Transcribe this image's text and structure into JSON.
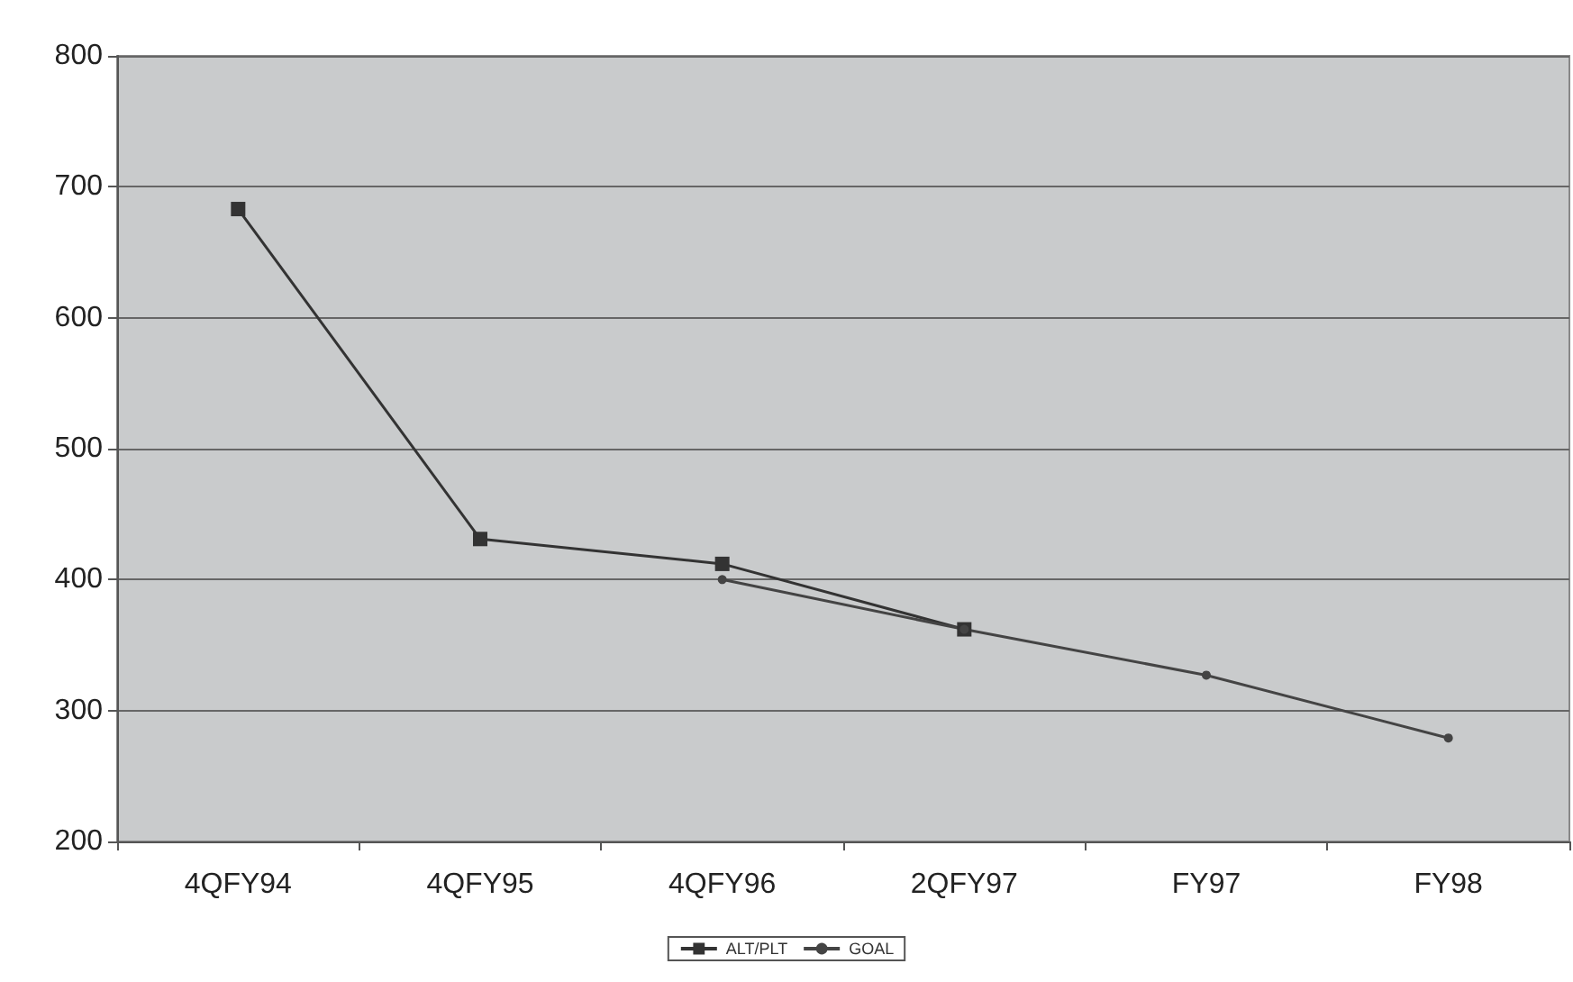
{
  "chart_data": {
    "type": "line",
    "categories": [
      "4QFY94",
      "4QFY95",
      "4QFY96",
      "2QFY97",
      "FY97",
      "FY98"
    ],
    "series": [
      {
        "name": "ALT/PLT",
        "color": "#333333",
        "marker": "square",
        "values": [
          683,
          431,
          412,
          362,
          null,
          null
        ]
      },
      {
        "name": "GOAL",
        "color": "#444444",
        "marker": "circle",
        "values": [
          null,
          null,
          400,
          362,
          327,
          279
        ]
      }
    ],
    "ylim": [
      200,
      800
    ],
    "yticks": [
      200,
      300,
      400,
      500,
      600,
      700,
      800
    ],
    "grid": "y",
    "legend": "bottom"
  }
}
